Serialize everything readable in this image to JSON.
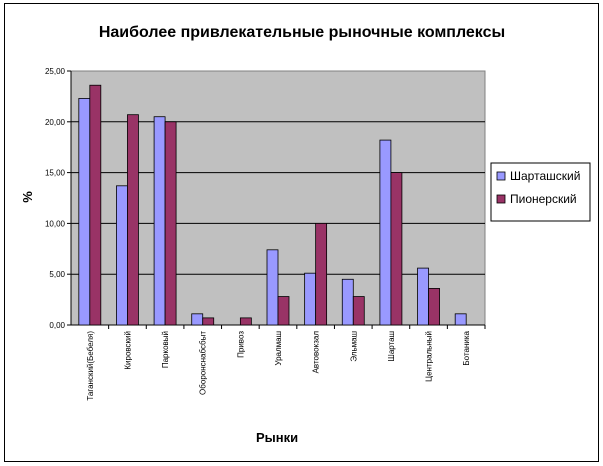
{
  "chart_data": {
    "type": "bar",
    "title": "Наиболее привлекательные рыночные комплексы",
    "xlabel": "Рынки",
    "ylabel": "%",
    "ylim": [
      0,
      25
    ],
    "yticks": [
      "0,00",
      "5,00",
      "10,00",
      "15,00",
      "20,00",
      "25,00"
    ],
    "grid": true,
    "legend_position": "right",
    "categories": [
      "Таганский(Бебеля)",
      "Кировский",
      "Парковый",
      "Оборонснабсбыт",
      "Привоз",
      "Уралмаш",
      "Автовокзал",
      "Эльмаш",
      "Шарташ",
      "Центральный",
      "Ботаника"
    ],
    "series": [
      {
        "name": "Шарташский",
        "color": "#9999FF",
        "values": [
          22.3,
          13.7,
          20.5,
          1.1,
          0.0,
          7.4,
          5.1,
          4.5,
          18.2,
          5.6,
          1.1
        ]
      },
      {
        "name": "Пионерский",
        "color": "#993366",
        "values": [
          23.6,
          20.7,
          20.0,
          0.7,
          0.7,
          2.8,
          10.0,
          2.8,
          15.0,
          3.6,
          0.0
        ]
      }
    ],
    "plot_background": "#C0C0C0"
  }
}
